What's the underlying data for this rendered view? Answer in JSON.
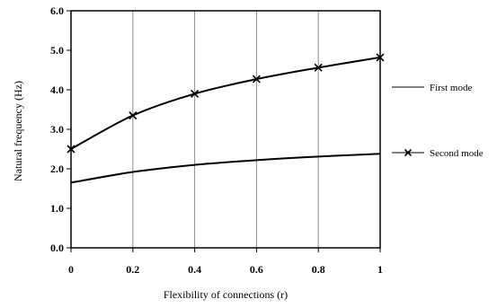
{
  "chart_data": {
    "type": "line",
    "xlabel": "Flexibility  of connections (r)",
    "ylabel": "Natural frequency (Hz)",
    "xlim": [
      0,
      1
    ],
    "ylim": [
      0,
      6
    ],
    "x_ticks": [
      "0",
      "0.2",
      "0.4",
      "0.6",
      "0.8",
      "1"
    ],
    "y_ticks": [
      "0.0",
      "1.0",
      "2.0",
      "3.0",
      "4.0",
      "5.0",
      "6.0"
    ],
    "grid": "vertical",
    "legend_position": "right",
    "series": [
      {
        "name": "First mode",
        "marker": "none",
        "x": [
          0,
          0.2,
          0.4,
          0.6,
          0.8,
          1
        ],
        "y": [
          1.65,
          1.92,
          2.1,
          2.22,
          2.31,
          2.38
        ]
      },
      {
        "name": "Second mode",
        "marker": "x",
        "x": [
          0,
          0.2,
          0.4,
          0.6,
          0.8,
          1
        ],
        "y": [
          2.5,
          3.35,
          3.9,
          4.27,
          4.56,
          4.82
        ]
      }
    ]
  }
}
